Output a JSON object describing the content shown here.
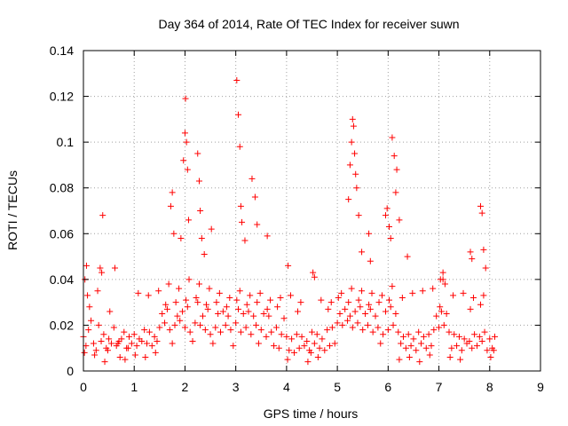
{
  "chart_data": {
    "type": "scatter",
    "title": "Day 364 of 2014, Rate Of TEC Index for receiver suwn",
    "xlabel": "GPS time / hours",
    "ylabel": "ROTI / TECUs",
    "xlim": [
      0,
      9
    ],
    "ylim": [
      0,
      0.14
    ],
    "grid": true,
    "marker": "+",
    "colors": {
      "points": "#ff0000",
      "grid": "#a0a0a0",
      "axis": "#000000"
    },
    "x_ticks": [
      "0",
      "1",
      "2",
      "3",
      "4",
      "5",
      "6",
      "7",
      "8",
      "9"
    ],
    "y_ticks": [
      "0",
      "0.02",
      "0.04",
      "0.06",
      "0.08",
      "0.1",
      "0.12",
      "0.14"
    ],
    "x_tick_values": [
      0,
      1,
      2,
      3,
      4,
      5,
      6,
      7,
      8,
      9
    ],
    "y_tick_values": [
      0,
      0.02,
      0.04,
      0.06,
      0.08,
      0.1,
      0.12,
      0.14
    ],
    "series": [
      {
        "name": "ROTI",
        "x": [
          0.0,
          0.1,
          0.2,
          0.3,
          0.4,
          0.5,
          0.6,
          0.7,
          0.8,
          0.9,
          1.0,
          1.1,
          1.2,
          1.3,
          1.4,
          1.5,
          1.6,
          1.7,
          1.8,
          1.9,
          2.0,
          2.1,
          2.2,
          2.3,
          2.4,
          2.5,
          2.6,
          2.7,
          2.8,
          2.9,
          3.0,
          3.1,
          3.2,
          3.3,
          3.4,
          3.5,
          3.6,
          3.7,
          3.8,
          3.9,
          4.0,
          4.1,
          4.2,
          4.3,
          4.4,
          4.5,
          4.6,
          4.7,
          4.8,
          4.9,
          5.0,
          5.1,
          5.2,
          5.3,
          5.4,
          5.5,
          5.6,
          5.7,
          5.8,
          5.9,
          6.0,
          6.1,
          6.2,
          6.3,
          6.4,
          6.5,
          6.6,
          6.7,
          6.8,
          6.9,
          7.0,
          7.1,
          7.2,
          7.3,
          7.4,
          7.5,
          7.6,
          7.7,
          7.8,
          7.9,
          8.0,
          8.1,
          0.05,
          0.15,
          0.25,
          0.35,
          0.45,
          0.55,
          0.65,
          0.75,
          0.85,
          0.95,
          1.05,
          1.15,
          1.25,
          1.35,
          1.45,
          1.55,
          1.65,
          1.75,
          1.85,
          1.95,
          2.05,
          2.15,
          2.25,
          2.35,
          2.45,
          2.55,
          2.65,
          2.75,
          2.85,
          2.95,
          3.05,
          3.15,
          3.25,
          3.35,
          3.45,
          3.55,
          3.65,
          3.75,
          3.85,
          3.95,
          4.05,
          4.15,
          4.25,
          4.35,
          4.45,
          4.55,
          4.65,
          4.75,
          4.85,
          4.95,
          5.05,
          5.15,
          5.25,
          5.35,
          5.45,
          5.55,
          5.65,
          5.75,
          5.85,
          5.95,
          6.05,
          6.15,
          6.25,
          6.35,
          6.45,
          6.55,
          6.65,
          6.75,
          6.85,
          6.95,
          7.05,
          7.15,
          7.25,
          7.35,
          7.45,
          7.55,
          7.65,
          7.75,
          7.85,
          7.95,
          8.05,
          0.02,
          0.12,
          0.22,
          0.42,
          0.52,
          0.72,
          0.82,
          1.02,
          1.22,
          1.42,
          1.62,
          1.82,
          2.02,
          2.22,
          2.42,
          2.62,
          2.82,
          3.02,
          3.22,
          3.42,
          3.62,
          3.82,
          4.02,
          4.22,
          4.42,
          4.62,
          4.82,
          5.02,
          5.22,
          5.42,
          5.62,
          5.82,
          6.02,
          6.22,
          6.42,
          6.62,
          6.82,
          7.02,
          7.22,
          7.42,
          7.62,
          7.82,
          8.02,
          0.08,
          0.28,
          0.48,
          0.68,
          0.88,
          1.08,
          1.28,
          1.48,
          1.68,
          1.88,
          2.08,
          2.28,
          2.48,
          2.68,
          2.88,
          3.08,
          3.28,
          3.48,
          3.68,
          3.88,
          4.08,
          4.28,
          4.48,
          4.68,
          4.88,
          5.08,
          5.28,
          5.48,
          5.68,
          5.88,
          6.08,
          6.28,
          6.48,
          6.68,
          6.88,
          7.08,
          7.28,
          7.48,
          7.68,
          7.88,
          8.08,
          0.03,
          0.06,
          0.33,
          0.36,
          0.38,
          0.62,
          1.72,
          1.75,
          1.78,
          1.92,
          1.97,
          2.0,
          2.01,
          2.03,
          2.05,
          2.07,
          2.25,
          2.28,
          2.3,
          2.33,
          2.38,
          2.52,
          3.02,
          3.05,
          3.08,
          3.1,
          3.12,
          3.18,
          3.32,
          3.38,
          3.42,
          3.62,
          4.03,
          4.52,
          4.55,
          5.22,
          5.25,
          5.28,
          5.3,
          5.32,
          5.34,
          5.36,
          5.38,
          5.42,
          5.48,
          5.62,
          5.65,
          5.95,
          5.98,
          6.02,
          6.05,
          6.08,
          6.12,
          6.15,
          6.17,
          6.22,
          6.38,
          7.03,
          7.08,
          7.12,
          7.62,
          7.65,
          7.82,
          7.85,
          7.88,
          7.92
        ],
        "y": [
          0.015,
          0.018,
          0.012,
          0.02,
          0.016,
          0.014,
          0.019,
          0.013,
          0.017,
          0.015,
          0.016,
          0.014,
          0.018,
          0.017,
          0.015,
          0.019,
          0.021,
          0.018,
          0.02,
          0.022,
          0.019,
          0.017,
          0.021,
          0.02,
          0.018,
          0.016,
          0.019,
          0.017,
          0.02,
          0.018,
          0.021,
          0.017,
          0.019,
          0.016,
          0.02,
          0.018,
          0.015,
          0.017,
          0.019,
          0.016,
          0.015,
          0.014,
          0.016,
          0.015,
          0.013,
          0.017,
          0.016,
          0.014,
          0.018,
          0.019,
          0.021,
          0.02,
          0.022,
          0.019,
          0.021,
          0.018,
          0.02,
          0.017,
          0.019,
          0.016,
          0.018,
          0.02,
          0.017,
          0.015,
          0.016,
          0.014,
          0.017,
          0.015,
          0.016,
          0.018,
          0.019,
          0.02,
          0.017,
          0.016,
          0.015,
          0.014,
          0.013,
          0.016,
          0.015,
          0.017,
          0.014,
          0.015,
          0.011,
          0.022,
          0.009,
          0.013,
          0.01,
          0.012,
          0.011,
          0.014,
          0.01,
          0.012,
          0.011,
          0.013,
          0.012,
          0.011,
          0.013,
          0.025,
          0.027,
          0.012,
          0.024,
          0.026,
          0.028,
          0.013,
          0.03,
          0.024,
          0.027,
          0.012,
          0.025,
          0.026,
          0.024,
          0.011,
          0.027,
          0.025,
          0.026,
          0.024,
          0.012,
          0.025,
          0.024,
          0.011,
          0.01,
          0.023,
          0.009,
          0.008,
          0.01,
          0.011,
          0.009,
          0.012,
          0.01,
          0.009,
          0.011,
          0.012,
          0.025,
          0.027,
          0.024,
          0.026,
          0.028,
          0.025,
          0.027,
          0.024,
          0.012,
          0.026,
          0.028,
          0.025,
          0.012,
          0.01,
          0.011,
          0.009,
          0.012,
          0.01,
          0.011,
          0.024,
          0.026,
          0.025,
          0.01,
          0.011,
          0.009,
          0.012,
          0.01,
          0.011,
          0.013,
          0.009,
          0.01,
          0.008,
          0.028,
          0.007,
          0.004,
          0.026,
          0.006,
          0.005,
          0.007,
          0.006,
          0.008,
          0.029,
          0.03,
          0.031,
          0.032,
          0.029,
          0.03,
          0.028,
          0.031,
          0.029,
          0.03,
          0.027,
          0.028,
          0.005,
          0.026,
          0.004,
          0.006,
          0.027,
          0.032,
          0.03,
          0.031,
          0.029,
          0.03,
          0.031,
          0.005,
          0.006,
          0.004,
          0.007,
          0.028,
          0.006,
          0.005,
          0.027,
          0.029,
          0.006,
          0.033,
          0.035,
          0.009,
          0.012,
          0.01,
          0.034,
          0.033,
          0.035,
          0.038,
          0.036,
          0.04,
          0.038,
          0.036,
          0.034,
          0.032,
          0.035,
          0.033,
          0.034,
          0.031,
          0.032,
          0.033,
          0.03,
          0.008,
          0.031,
          0.03,
          0.034,
          0.036,
          0.035,
          0.034,
          0.033,
          0.037,
          0.032,
          0.034,
          0.035,
          0.036,
          0.04,
          0.033,
          0.034,
          0.032,
          0.033,
          0.009,
          0.04,
          0.046,
          0.045,
          0.043,
          0.068,
          0.045,
          0.072,
          0.078,
          0.06,
          0.058,
          0.092,
          0.104,
          0.119,
          0.1,
          0.088,
          0.066,
          0.095,
          0.083,
          0.07,
          0.058,
          0.051,
          0.062,
          0.127,
          0.112,
          0.098,
          0.072,
          0.065,
          0.057,
          0.084,
          0.076,
          0.064,
          0.059,
          0.046,
          0.043,
          0.041,
          0.075,
          0.09,
          0.1,
          0.11,
          0.107,
          0.095,
          0.086,
          0.08,
          0.068,
          0.052,
          0.06,
          0.048,
          0.068,
          0.071,
          0.063,
          0.058,
          0.102,
          0.094,
          0.078,
          0.088,
          0.066,
          0.05,
          0.04,
          0.043,
          0.038,
          0.052,
          0.049,
          0.072,
          0.069,
          0.053,
          0.045
        ]
      }
    ]
  }
}
